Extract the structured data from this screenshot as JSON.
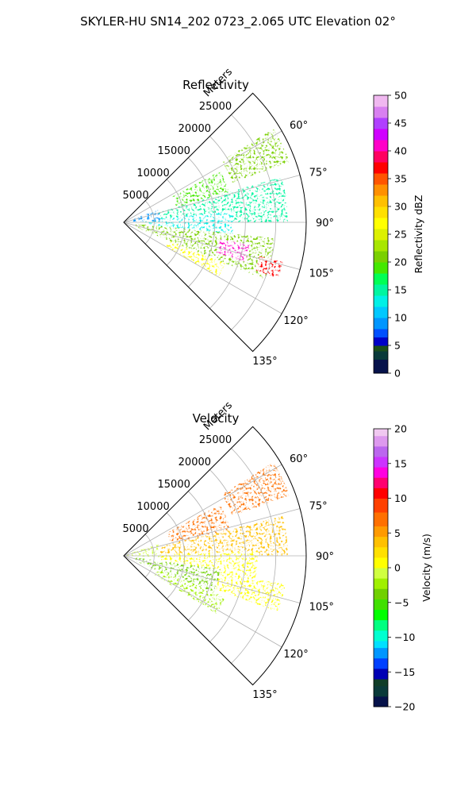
{
  "suptitle": "SKYLER-HU  SN14_202  0723_2.065 UTC Elevation 02°",
  "chart_data": [
    {
      "type": "heatmap",
      "projection": "polar-sector",
      "title": "Reflectivity",
      "radial_axis_label": "Meters",
      "radial_ticks": [
        5000,
        10000,
        15000,
        20000,
        25000
      ],
      "radial_tick_labels": [
        "5000",
        "10000",
        "15000",
        "20000",
        "25000"
      ],
      "radial_range": [
        0,
        30000
      ],
      "azimuth_range_deg": [
        45,
        135
      ],
      "azimuth_ticks_deg": [
        60,
        75,
        90,
        105,
        120,
        135
      ],
      "azimuth_tick_labels": [
        "60°",
        "75°",
        "90°",
        "105°",
        "120°",
        "135°"
      ],
      "grid": true,
      "colorbar": {
        "label": "Reflectivity dBZ",
        "range": [
          0,
          50
        ],
        "ticks": [
          "0",
          "5",
          "10",
          "15",
          "20",
          "25",
          "30",
          "35",
          "40",
          "45",
          "50"
        ],
        "placement": "right"
      },
      "echo_regions": [
        {
          "az_deg": [
            58,
            70
          ],
          "r_m": [
            19000,
            29000
          ],
          "value": 20
        },
        {
          "az_deg": [
            62,
            74
          ],
          "r_m": [
            9000,
            18000
          ],
          "value": 18
        },
        {
          "az_deg": [
            74,
            90
          ],
          "r_m": [
            3000,
            27000
          ],
          "value": 14
        },
        {
          "az_deg": [
            84,
            98
          ],
          "r_m": [
            4000,
            18000
          ],
          "value": 12
        },
        {
          "az_deg": [
            96,
            112
          ],
          "r_m": [
            2000,
            25000
          ],
          "value": 21
        },
        {
          "az_deg": [
            100,
            108
          ],
          "r_m": [
            16000,
            21000
          ],
          "value": 40
        },
        {
          "az_deg": [
            104,
            110
          ],
          "r_m": [
            23000,
            27000
          ],
          "value": 36
        },
        {
          "az_deg": [
            112,
            120
          ],
          "r_m": [
            8000,
            18000
          ],
          "value": 27
        },
        {
          "az_deg": [
            70,
            88
          ],
          "r_m": [
            0,
            6000
          ],
          "value": 9
        }
      ]
    },
    {
      "type": "heatmap",
      "projection": "polar-sector",
      "title": "Velocity",
      "radial_axis_label": "Meters",
      "radial_ticks": [
        5000,
        10000,
        15000,
        20000,
        25000
      ],
      "radial_tick_labels": [
        "5000",
        "10000",
        "15000",
        "20000",
        "25000"
      ],
      "radial_range": [
        0,
        30000
      ],
      "azimuth_range_deg": [
        45,
        135
      ],
      "azimuth_ticks_deg": [
        60,
        75,
        90,
        105,
        120,
        135
      ],
      "azimuth_tick_labels": [
        "60°",
        "75°",
        "90°",
        "105°",
        "120°",
        "135°"
      ],
      "grid": true,
      "colorbar": {
        "label": "Velocity (m/s)",
        "range": [
          -20,
          20
        ],
        "ticks": [
          "−20",
          "−15",
          "−10",
          "−5",
          "0",
          "5",
          "10",
          "15",
          "20"
        ],
        "placement": "right"
      },
      "echo_regions": [
        {
          "az_deg": [
            58,
            70
          ],
          "r_m": [
            19000,
            29000
          ],
          "value": 7
        },
        {
          "az_deg": [
            62,
            76
          ],
          "r_m": [
            8000,
            18000
          ],
          "value": 6
        },
        {
          "az_deg": [
            76,
            90
          ],
          "r_m": [
            4000,
            27000
          ],
          "value": 3
        },
        {
          "az_deg": [
            88,
            100
          ],
          "r_m": [
            6000,
            22000
          ],
          "value": 1
        },
        {
          "az_deg": [
            98,
            114
          ],
          "r_m": [
            2000,
            16000
          ],
          "value": -4
        },
        {
          "az_deg": [
            100,
            110
          ],
          "r_m": [
            16000,
            27000
          ],
          "value": 0
        },
        {
          "az_deg": [
            112,
            122
          ],
          "r_m": [
            6000,
            18000
          ],
          "value": -3
        },
        {
          "az_deg": [
            70,
            92
          ],
          "r_m": [
            0,
            6000
          ],
          "value": -1
        }
      ]
    }
  ]
}
